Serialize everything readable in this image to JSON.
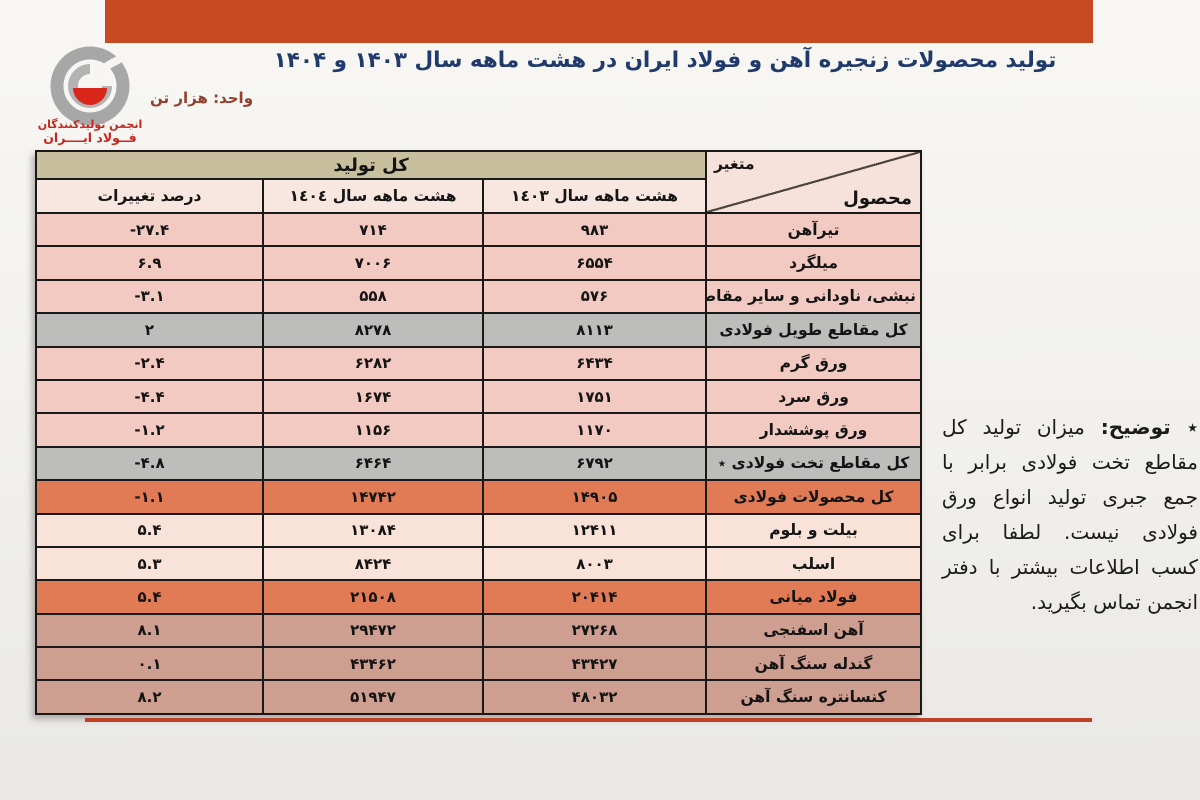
{
  "header": {
    "title": "تولید محصولات زنجیره آهن و فولاد ایران در هشت ماهه سال ۱۴۰۳ و ۱۴۰۴",
    "unit_label": "واحد: هزار تن",
    "logo": {
      "line1": "انجمن تولیدکنندگان",
      "line2": "فــولاد ایــــران"
    }
  },
  "table": {
    "corner": {
      "top": "متغیر",
      "bottom": "محصول"
    },
    "group_header": "کل تولید",
    "columns": [
      "هشت ماهه سال ١٤٠٣",
      "هشت ماهه سال ١٤٠٤",
      "درصد تغییرات"
    ],
    "rows": [
      {
        "product": "تیرآهن",
        "y1403": "۹۸۳",
        "y1404": "۷۱۴",
        "pct": "-۲۷.۴",
        "style": "pink"
      },
      {
        "product": "میلگرد",
        "y1403": "۶۵۵۴",
        "y1404": "۷۰۰۶",
        "pct": "۶.۹",
        "style": "pink"
      },
      {
        "product": "نبشی، ناودانی و سایر مقاطع",
        "y1403": "۵۷۶",
        "y1404": "۵۵۸",
        "pct": "-۳.۱",
        "style": "pink"
      },
      {
        "product": "کل مقاطع طویل فولادی",
        "y1403": "۸۱۱۳",
        "y1404": "۸۲۷۸",
        "pct": "۲",
        "style": "gray"
      },
      {
        "product": "ورق گرم",
        "y1403": "۶۴۳۴",
        "y1404": "۶۲۸۲",
        "pct": "-۲.۴",
        "style": "pink"
      },
      {
        "product": "ورق سرد",
        "y1403": "۱۷۵۱",
        "y1404": "۱۶۷۴",
        "pct": "-۴.۴",
        "style": "pink"
      },
      {
        "product": "ورق پوششدار",
        "y1403": "۱۱۷۰",
        "y1404": "۱۱۵۶",
        "pct": "-۱.۲",
        "style": "pink"
      },
      {
        "product": "کل مقاطع تخت فولادی ٭",
        "y1403": "۶۷۹۲",
        "y1404": "۶۴۶۴",
        "pct": "-۴.۸",
        "style": "gray"
      },
      {
        "product": "کل محصولات فولادی",
        "y1403": "۱۴۹۰۵",
        "y1404": "۱۴۷۴۲",
        "pct": "-۱.۱",
        "style": "orange"
      },
      {
        "product": "بیلت و بلوم",
        "y1403": "۱۲۴۱۱",
        "y1404": "۱۳۰۸۴",
        "pct": "۵.۴",
        "style": "cream"
      },
      {
        "product": "اسلب",
        "y1403": "۸۰۰۳",
        "y1404": "۸۴۲۴",
        "pct": "۵.۳",
        "style": "cream"
      },
      {
        "product": "فولاد میانی",
        "y1403": "۲۰۴۱۴",
        "y1404": "۲۱۵۰۸",
        "pct": "۵.۴",
        "style": "orange"
      },
      {
        "product": "آهن اسفنجی",
        "y1403": "۲۷۲۶۸",
        "y1404": "۲۹۴۷۲",
        "pct": "۸.۱",
        "style": "tan"
      },
      {
        "product": "گندله سنگ آهن",
        "y1403": "۴۳۴۲۷",
        "y1404": "۴۳۴۶۲",
        "pct": "۰.۱",
        "style": "tan"
      },
      {
        "product": "کنسانتره سنگ آهن",
        "y1403": "۴۸۰۳۲",
        "y1404": "۵۱۹۴۷",
        "pct": "۸.۲",
        "style": "tan"
      }
    ]
  },
  "note": {
    "label": "٭ توضیح:",
    "body": " میزان تولید کل مقاطع تخت فولادی برابر با جمع جبری تولید انواع ورق فولادی نیست. لطفا برای کسب اطلاعات بیشتر با دفتر انجمن تماس بگیرید."
  },
  "colors": {
    "top_bar": "#C84A23",
    "title_blue": "#203A6B",
    "unit_maroon": "#95402E",
    "group_header_olive": "#C8BF9F",
    "header_pink": "#F8E7E0",
    "row_pink": "#F3CAC2",
    "row_gray": "#BDBDBC",
    "row_orange": "#E07B55",
    "row_cream": "#F9E3D9",
    "row_tan": "#CE9E90",
    "bottom_rule": "#BC4326",
    "logo_red": "#D8261B"
  }
}
